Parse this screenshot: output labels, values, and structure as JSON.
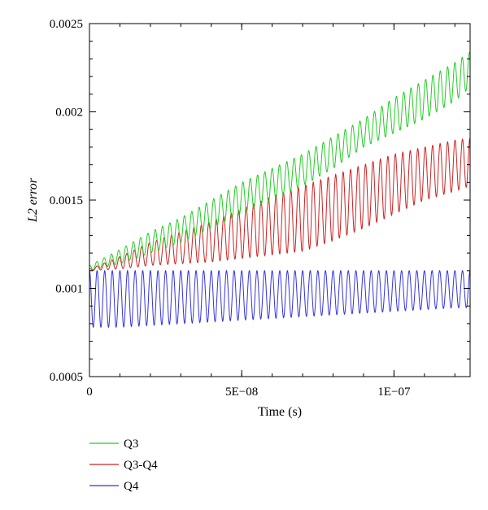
{
  "chart_data": {
    "type": "line",
    "title": "",
    "xlabel": "Time (s)",
    "ylabel": "L2 error",
    "xlim": [
      0,
      1.25e-07
    ],
    "ylim": [
      0.0005,
      0.0025
    ],
    "x_ticks": [
      {
        "value": 0,
        "label": "0"
      },
      {
        "value": 5e-08,
        "label": "5E−08"
      },
      {
        "value": 1e-07,
        "label": "1E−07"
      }
    ],
    "y_ticks": [
      {
        "value": 0.0005,
        "label": "0.0005"
      },
      {
        "value": 0.001,
        "label": "0.001"
      },
      {
        "value": 0.0015,
        "label": "0.0015"
      },
      {
        "value": 0.002,
        "label": "0.002"
      },
      {
        "value": 0.0025,
        "label": "0.0025"
      }
    ],
    "grid": false,
    "legend_position": "bottom-left",
    "series": [
      {
        "name": "Q3",
        "color": "#22cc22",
        "x": [
          0,
          1e-08,
          2e-08,
          3e-08,
          4e-08,
          5e-08,
          6e-08,
          7e-08,
          8e-08,
          9e-08,
          1e-07,
          1.1e-07,
          1.2e-07,
          1.25e-07
        ],
        "upper": [
          0.00113,
          0.00122,
          0.00132,
          0.0014,
          0.0015,
          0.0016,
          0.00168,
          0.00176,
          0.00186,
          0.00196,
          0.00208,
          0.00218,
          0.00228,
          0.00234
        ],
        "lower": [
          0.0011,
          0.00114,
          0.0012,
          0.00126,
          0.00134,
          0.00142,
          0.0015,
          0.00158,
          0.00168,
          0.0018,
          0.00188,
          0.00196,
          0.00206,
          0.00214
        ],
        "period": 2.4e-09
      },
      {
        "name": "Q3-Q4",
        "color": "#cc2222",
        "x": [
          0,
          1e-08,
          2e-08,
          3e-08,
          4e-08,
          5e-08,
          6e-08,
          7e-08,
          8e-08,
          9e-08,
          1e-07,
          1.1e-07,
          1.2e-07,
          1.25e-07
        ],
        "upper": [
          0.00111,
          0.00118,
          0.00126,
          0.00132,
          0.00138,
          0.00145,
          0.00152,
          0.00158,
          0.00164,
          0.0017,
          0.00176,
          0.0018,
          0.00184,
          0.00185
        ],
        "lower": [
          0.0011,
          0.00111,
          0.00113,
          0.00114,
          0.00115,
          0.00117,
          0.00119,
          0.00121,
          0.00127,
          0.00134,
          0.00142,
          0.0015,
          0.00155,
          0.00158
        ],
        "period": 2.45e-09
      },
      {
        "name": "Q4",
        "color": "#3333dd",
        "x": [
          0,
          1e-08,
          2e-08,
          3e-08,
          4e-08,
          5e-08,
          6e-08,
          7e-08,
          8e-08,
          9e-08,
          1e-07,
          1.1e-07,
          1.2e-07,
          1.25e-07
        ],
        "upper": [
          0.0011,
          0.0011,
          0.0011,
          0.0011,
          0.0011,
          0.0011,
          0.0011,
          0.0011,
          0.0011,
          0.0011,
          0.0011,
          0.0011,
          0.0011,
          0.0011
        ],
        "lower": [
          0.00078,
          0.00078,
          0.00079,
          0.0008,
          0.00081,
          0.00082,
          0.00083,
          0.00084,
          0.00085,
          0.00086,
          0.00087,
          0.00088,
          0.00089,
          0.00089
        ],
        "period": 2.5e-09
      }
    ]
  }
}
